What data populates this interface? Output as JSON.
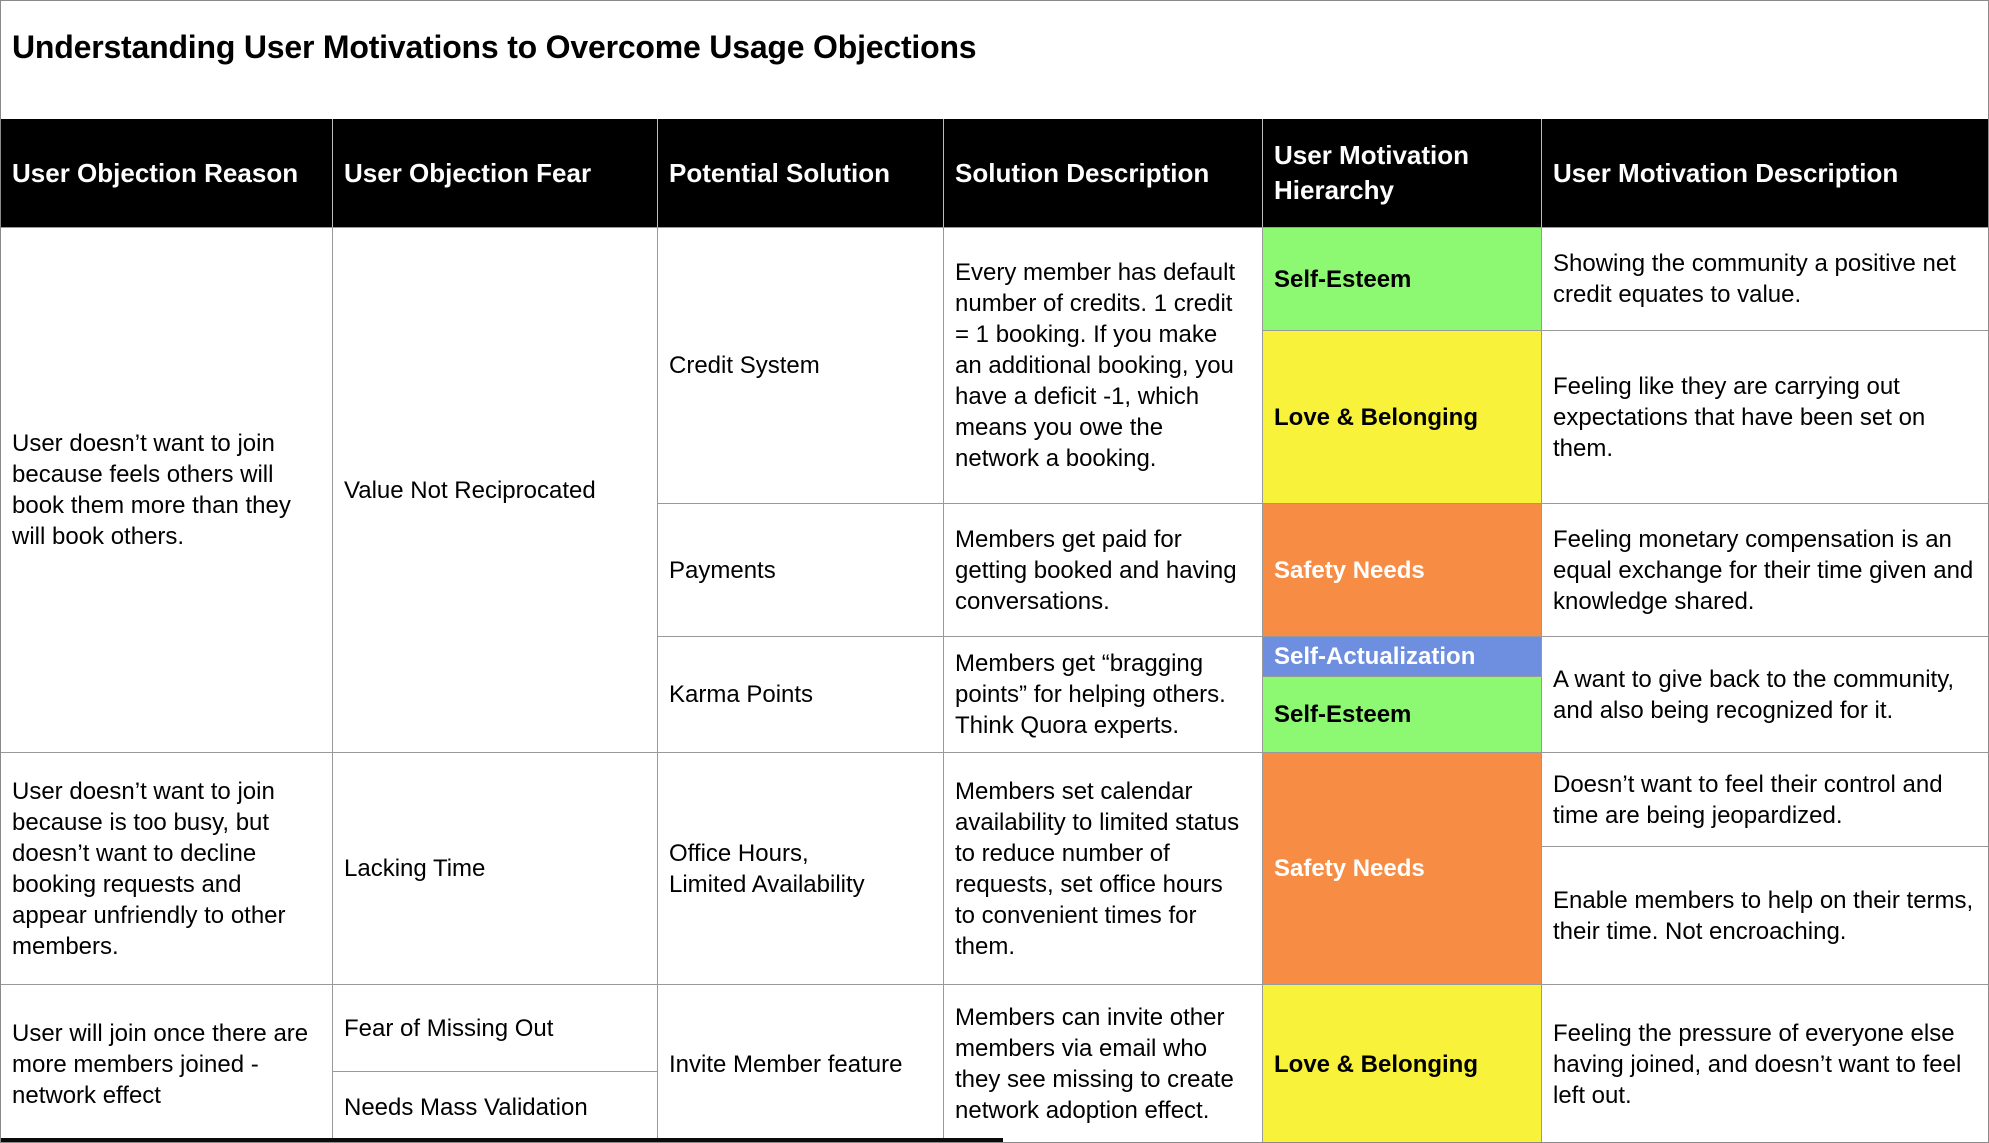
{
  "title": "Understanding User Motivations to Overcome Usage Objections",
  "colors": {
    "header_bg": "#000000",
    "header_text": "#ffffff",
    "grid_line": "#999999",
    "self_esteem_green": "#8DF973",
    "love_belonging_yellow": "#F8F23B",
    "safety_needs_orange": "#F78C44",
    "self_actualization_blue": "#6E8FE0"
  },
  "headers": {
    "objection_reason": "User Objection Reason",
    "objection_fear": "User Objection Fear",
    "potential_solution": "Potential Solution",
    "solution_description": "Solution Description",
    "motivation_hierarchy": "User Motivation Hierarchy",
    "motivation_description": "User Motivation Description"
  },
  "cells": {
    "objection1": "User doesn’t want to join because feels others will book them more than they will book others.",
    "fear1": "Value Not Reciprocated",
    "sol_credit": "Credit System",
    "desc_credit": "Every member has default number of credits. 1 credit = 1 booking. If you make an additional booking, you have a deficit -1, which means you owe the network a booking.",
    "h_selfesteem1": "Self-Esteem",
    "md_credit1": "Showing the community a positive net credit equates to value.",
    "h_love1": "Love & Belonging",
    "md_credit2": "Feeling like they are carrying out expectations that have been set on them.",
    "sol_payments": "Payments",
    "desc_payments": "Members get paid for getting booked and having conversations.",
    "h_safety1": "Safety Needs",
    "md_payments": "Feeling monetary compensation is an equal exchange for their time given and knowledge shared.",
    "sol_karma": "Karma Points",
    "desc_karma": "Members get “bragging points” for helping others. Think Quora experts.",
    "h_selfact": "Self-Actualization",
    "h_selfesteem2": "Self-Esteem",
    "md_karma": "A want to give back to the community, and also being recognized for it.",
    "objection2": "User doesn’t want to join because is too busy, but doesn’t want to decline booking requests and appear unfriendly to other members.",
    "fear2": "Lacking Time",
    "sol_office": "Office Hours,\nLimited Availability",
    "desc_office": "Members set calendar availability to limited status to reduce number of requests, set office hours to convenient times for them.",
    "h_safety2": "Safety Needs",
    "md_office1": "Doesn’t want to feel their control and time are being jeopardized.",
    "md_office2": "Enable members to help on their terms, their time. Not encroaching.",
    "objection3": "User will join once there are more members joined - network effect",
    "fear3a": "Fear of Missing Out",
    "fear3b": "Needs Mass Validation",
    "sol_invite": "Invite Member feature",
    "desc_invite": "Members can invite other members via email who they see missing to create network adoption effect.",
    "h_love2": "Love & Belonging",
    "md_invite": "Feeling the pressure of everyone else having joined, and doesn’t want to feel left out."
  }
}
